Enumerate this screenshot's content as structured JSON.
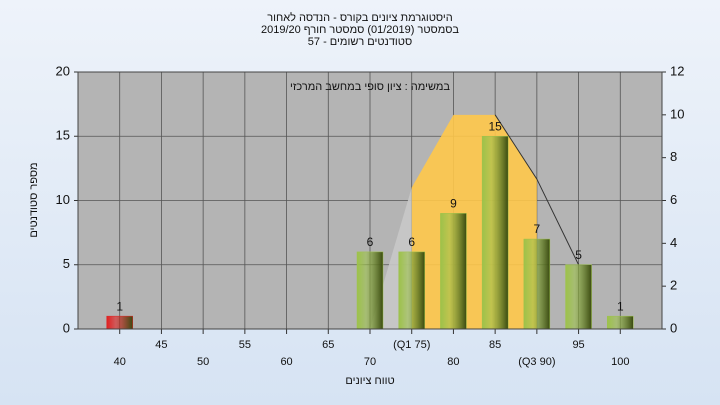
{
  "chart_data": {
    "type": "bar",
    "title": [
      "היסטוגרמת ציונים בקורס - הנדסה לאחור",
      "בסמסטר  (01/2019)  סמסטר חורף 2019/20",
      "סטודנטים רשומים - 57"
    ],
    "annotation": "במשימה : ציון סופי במחשב המרכזי",
    "xlabel": "טווח ציונים",
    "ylabel": "מספר סטודנטים",
    "categories": [
      "40",
      "45",
      "50",
      "55",
      "60",
      "65",
      "70",
      "(Q1 75)",
      "80",
      "85",
      "(Q3 90)",
      "95",
      "100"
    ],
    "values": [
      1,
      0,
      0,
      0,
      0,
      0,
      6,
      6,
      9,
      15,
      7,
      5,
      1
    ],
    "colors": [
      "#e02020",
      "#9dc24a",
      "#9dc24a",
      "#9dc24a",
      "#9dc24a",
      "#9dc24a",
      "#9dc24a",
      "#9dc24a",
      "#9dc24a",
      "#9dc24a",
      "#9dc24a",
      "#9dc24a",
      "#9dc24a"
    ],
    "series": [
      {
        "kind": "area",
        "color": "#ffc84a",
        "axis": "y2",
        "values": [
          null,
          null,
          null,
          null,
          null,
          null,
          null,
          6.6,
          10,
          10,
          7,
          null,
          null
        ]
      },
      {
        "kind": "area",
        "color": "#c8c8c8",
        "axis": "y2",
        "values": [
          null,
          null,
          null,
          null,
          null,
          null,
          0,
          6.6,
          null,
          null,
          null,
          null,
          null
        ]
      },
      {
        "kind": "line",
        "color": "#333333",
        "axis": "y2",
        "values": [
          null,
          null,
          null,
          null,
          null,
          null,
          null,
          null,
          null,
          10,
          7,
          3,
          null
        ]
      }
    ],
    "ylim": [
      0,
      20
    ],
    "yticks": [
      0,
      5,
      10,
      15,
      20
    ],
    "y2lim": [
      0,
      12
    ],
    "y2ticks": [
      0,
      2,
      4,
      6,
      8,
      10,
      12
    ],
    "grid": true
  }
}
